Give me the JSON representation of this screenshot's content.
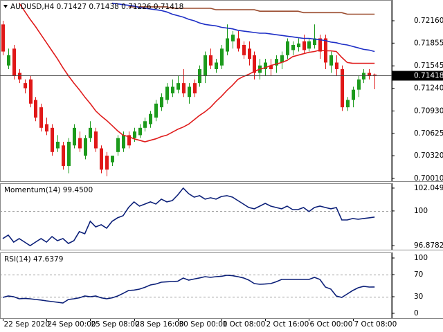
{
  "chart_data": [
    {
      "type": "candlestick",
      "title": "AUDUSD,H4  0.71427 0.71438 0.71226 0.71418",
      "categories": [
        "22 Sep 2020",
        null,
        null,
        null,
        null,
        null,
        null,
        null,
        "24 Sep 00:00",
        null,
        null,
        null,
        null,
        null,
        null,
        null,
        "25 Sep 08:00",
        null,
        null,
        null,
        null,
        null,
        null,
        null,
        "28 Sep 16:00",
        null,
        null,
        null,
        null,
        null,
        null,
        null,
        "30 Sep 00:00",
        null,
        null,
        null,
        null,
        null,
        null,
        null,
        "1 Oct 08:00",
        null,
        null,
        null,
        null,
        null,
        null,
        null,
        "2 Oct 16:00",
        null,
        null,
        null,
        null,
        null,
        null,
        null,
        "6 Oct 00:00",
        null,
        null,
        null,
        null,
        null,
        null,
        null,
        "7 Oct 08:00",
        null,
        null,
        null,
        null
      ],
      "open": [
        0.7211,
        0.7155,
        0.7178,
        0.7145,
        0.7131,
        0.7136,
        0.7108,
        0.7098,
        0.7075,
        0.707,
        0.7042,
        0.7046,
        0.7018,
        0.7046,
        0.7056,
        0.7032,
        0.7056,
        0.7065,
        0.7042,
        0.7032,
        0.7023,
        0.7037,
        0.7042,
        0.706,
        0.7056,
        0.706,
        0.707,
        0.7075,
        0.7084,
        0.7098,
        0.7108,
        0.7117,
        0.7122,
        0.7131,
        0.7112,
        0.7131,
        0.7131,
        0.7141,
        0.7169,
        0.715,
        0.7155,
        0.7174,
        0.7188,
        0.7192,
        0.7183,
        0.7178,
        0.7169,
        0.7145,
        0.715,
        0.7155,
        0.7155,
        0.7159,
        0.7169,
        0.7176,
        0.718,
        0.7188,
        0.7178,
        0.7183,
        0.7192,
        0.7192,
        0.7155,
        0.7159,
        0.715,
        0.7098,
        0.7108,
        0.7122,
        0.7136,
        0.7145,
        0.71427
      ],
      "high": [
        0.7216,
        0.7178,
        0.7183,
        0.715,
        0.7136,
        0.7141,
        0.7112,
        0.7103,
        0.7084,
        0.7075,
        0.706,
        0.7051,
        0.7056,
        0.7075,
        0.7065,
        0.706,
        0.7079,
        0.707,
        0.7046,
        0.7037,
        0.7032,
        0.706,
        0.7065,
        0.7065,
        0.707,
        0.7075,
        0.7084,
        0.7093,
        0.7108,
        0.7117,
        0.7131,
        0.7136,
        0.7141,
        0.715,
        0.7131,
        0.7136,
        0.7155,
        0.7174,
        0.7178,
        0.7164,
        0.7183,
        0.7211,
        0.7202,
        0.7202,
        0.7188,
        0.7188,
        0.7174,
        0.7164,
        0.7164,
        0.7164,
        0.7169,
        0.7174,
        0.7192,
        0.7188,
        0.7192,
        0.7197,
        0.7192,
        0.7211,
        0.7197,
        0.7197,
        0.7174,
        0.7169,
        0.7155,
        0.7112,
        0.7126,
        0.7141,
        0.715,
        0.715,
        0.71438
      ],
      "low": [
        0.7169,
        0.715,
        0.7136,
        0.7131,
        0.7117,
        0.7098,
        0.7079,
        0.7065,
        0.706,
        0.7032,
        0.7037,
        0.7013,
        0.7008,
        0.7042,
        0.7037,
        0.7027,
        0.7051,
        0.7037,
        0.7008,
        0.7004,
        0.7018,
        0.7032,
        0.7037,
        0.7042,
        0.7051,
        0.7056,
        0.7065,
        0.707,
        0.7079,
        0.7093,
        0.7103,
        0.7112,
        0.7117,
        0.7112,
        0.7103,
        0.7112,
        0.7126,
        0.7131,
        0.715,
        0.7145,
        0.715,
        0.7169,
        0.7178,
        0.7174,
        0.7164,
        0.7155,
        0.7136,
        0.7136,
        0.7141,
        0.7141,
        0.7145,
        0.715,
        0.7164,
        0.7169,
        0.7174,
        0.7171,
        0.7174,
        0.7178,
        0.7164,
        0.715,
        0.7145,
        0.7141,
        0.7093,
        0.7093,
        0.7098,
        0.7112,
        0.7131,
        0.7136,
        0.71226
      ],
      "close": [
        0.7174,
        0.7169,
        0.7141,
        0.7136,
        0.7124,
        0.7103,
        0.7084,
        0.707,
        0.7065,
        0.7037,
        0.7051,
        0.7018,
        0.7051,
        0.707,
        0.7042,
        0.7056,
        0.707,
        0.7042,
        0.7013,
        0.7013,
        0.7032,
        0.7056,
        0.706,
        0.7046,
        0.7065,
        0.707,
        0.7079,
        0.7089,
        0.7103,
        0.7112,
        0.7126,
        0.7126,
        0.7131,
        0.7117,
        0.7126,
        0.7117,
        0.715,
        0.7169,
        0.7155,
        0.7159,
        0.7178,
        0.7192,
        0.7197,
        0.7178,
        0.7169,
        0.7164,
        0.7145,
        0.7155,
        0.7159,
        0.715,
        0.7164,
        0.7169,
        0.7188,
        0.7183,
        0.7185,
        0.7176,
        0.7188,
        0.7192,
        0.7174,
        0.7159,
        0.7169,
        0.715,
        0.7098,
        0.7108,
        0.7122,
        0.7136,
        0.7145,
        0.7141,
        0.71418
      ],
      "up_color": "#1c9a1c",
      "down_color": "#e01818",
      "price_line": true,
      "series": [
        {
          "color": "#9a4b2e",
          "values": [
            null,
            null,
            null,
            null,
            null,
            null,
            null,
            null,
            null,
            null,
            null,
            null,
            null,
            null,
            null,
            null,
            null,
            null,
            null,
            null,
            null,
            null,
            null,
            0.7235,
            0.7235,
            0.7235,
            0.7235,
            0.7235,
            0.7235,
            0.7235,
            0.7235,
            0.7233,
            0.7233,
            0.7233,
            0.7233,
            0.7233,
            0.7233,
            0.7233,
            0.7233,
            0.7231,
            0.7231,
            0.7231,
            0.7231,
            0.7231,
            0.7231,
            0.7231,
            0.7231,
            0.7229,
            0.7229,
            0.7229,
            0.7229,
            0.7229,
            0.7229,
            0.7229,
            0.7229,
            0.7227,
            0.7227,
            0.7227,
            0.7227,
            0.7227,
            0.7227,
            0.7227,
            0.7227,
            0.7225,
            0.7225,
            0.7225,
            0.7225,
            0.7225,
            0.7225
          ]
        },
        {
          "color": "#1e2fc6",
          "values": [
            null,
            null,
            null,
            null,
            null,
            null,
            null,
            null,
            null,
            null,
            null,
            null,
            null,
            null,
            null,
            null,
            null,
            null,
            null,
            null,
            0.724,
            0.7239,
            0.7238,
            0.7237,
            0.7236,
            0.7234,
            0.7233,
            0.7232,
            0.7231,
            0.723,
            0.7228,
            0.7225,
            0.7223,
            0.7221,
            0.7218,
            0.7216,
            0.7213,
            0.7211,
            0.721,
            0.7209,
            0.7207,
            0.7206,
            0.7205,
            0.7203,
            0.7202,
            0.7201,
            0.72,
            0.7199,
            0.7199,
            0.7198,
            0.7197,
            0.7196,
            0.7195,
            0.7194,
            0.7193,
            0.7192,
            0.7192,
            0.7191,
            0.719,
            0.7189,
            0.7187,
            0.7186,
            0.7184,
            0.7183,
            0.7181,
            0.7179,
            0.7177,
            0.7176,
            0.7174
          ]
        },
        {
          "color": "#e01c1c",
          "values": [
            null,
            null,
            null,
            0.724,
            0.7229,
            0.7218,
            0.7208,
            0.7197,
            0.7186,
            0.7175,
            0.7164,
            0.7152,
            0.7141,
            0.7131,
            0.7122,
            0.7112,
            0.7103,
            0.7093,
            0.7086,
            0.708,
            0.7073,
            0.7066,
            0.706,
            0.7058,
            0.7055,
            0.7053,
            0.7051,
            0.7053,
            0.7055,
            0.7058,
            0.706,
            0.7064,
            0.7068,
            0.7071,
            0.7075,
            0.7081,
            0.7087,
            0.7092,
            0.7098,
            0.7106,
            0.7113,
            0.7121,
            0.7128,
            0.7136,
            0.714,
            0.7143,
            0.7147,
            0.715,
            0.7152,
            0.7155,
            0.7157,
            0.7159,
            0.7162,
            0.7167,
            0.7169,
            0.7171,
            0.7173,
            0.7174,
            0.7176,
            0.7175,
            0.7175,
            0.7174,
            0.7166,
            0.7159,
            0.7158,
            0.7158,
            0.7158,
            0.7158,
            0.7158
          ]
        }
      ],
      "ylim": [
        0.69972,
        0.72443
      ],
      "yticks": [
        {
          "value": 0.7216,
          "label": "0.72160"
        },
        0.71855,
        0.71545,
        {
          "value": 0.7124,
          "label": "0.71240"
        },
        {
          "value": 0.7093,
          "label": "0.70930"
        },
        0.70625,
        {
          "value": 0.7032,
          "label": "0.70320"
        },
        {
          "value": 0.7001,
          "label": "0.70010"
        }
      ]
    },
    {
      "type": "line",
      "title": "Momentum(14) 99.4500",
      "color": "#0b1f78",
      "values": [
        97.52,
        97.83,
        97.2,
        97.52,
        97.2,
        96.8782,
        97.2,
        97.52,
        97.2,
        97.7,
        97.33,
        97.52,
        97.08,
        97.33,
        98.14,
        97.95,
        99.07,
        98.57,
        98.76,
        98.45,
        99.07,
        99.38,
        99.57,
        100.31,
        100.81,
        100.43,
        100.62,
        100.81,
        100.62,
        101.06,
        100.81,
        100.93,
        101.43,
        102.0498,
        101.55,
        101.24,
        101.37,
        101.06,
        101.18,
        101.06,
        101.3,
        101.37,
        101.24,
        100.93,
        100.62,
        100.31,
        100.19,
        100.43,
        100.68,
        100.43,
        100.31,
        100.19,
        100.43,
        100.12,
        100.12,
        100.31,
        99.94,
        100.31,
        100.43,
        100.31,
        100.19,
        100.31,
        99.19,
        99.19,
        99.32,
        99.25,
        99.32,
        99.38,
        99.45
      ],
      "ylim": [
        96.52,
        102.48
      ],
      "yticks": [
        96.8782,
        100,
        102.0498
      ],
      "levels": [
        100
      ]
    },
    {
      "type": "line",
      "title": "RSI(14) 47.6379",
      "color": "#0b1f78",
      "values": [
        28.75,
        31.25,
        30,
        26.25,
        27,
        26.25,
        25,
        24,
        22.5,
        21.25,
        20,
        18.75,
        25,
        26.25,
        28,
        31.25,
        30,
        31.25,
        28,
        26.25,
        28,
        31.25,
        36,
        41.25,
        42,
        43.75,
        47,
        51.25,
        53,
        56.25,
        57,
        57.5,
        58,
        63.75,
        60,
        62,
        64,
        66.25,
        65,
        66.25,
        67,
        68.75,
        68,
        66.25,
        64,
        60,
        53.75,
        52.5,
        53,
        53.75,
        57,
        61.25,
        61.25,
        61.25,
        61.25,
        61.25,
        61.25,
        65,
        61.25,
        47.5,
        43.75,
        31.25,
        28.75,
        35,
        41.25,
        46.25,
        48.75,
        47.5,
        47.6379
      ],
      "ylim": [
        -8.75,
        110
      ],
      "yticks": [
        0,
        30,
        70,
        100
      ],
      "levels": [
        30,
        70
      ]
    }
  ]
}
